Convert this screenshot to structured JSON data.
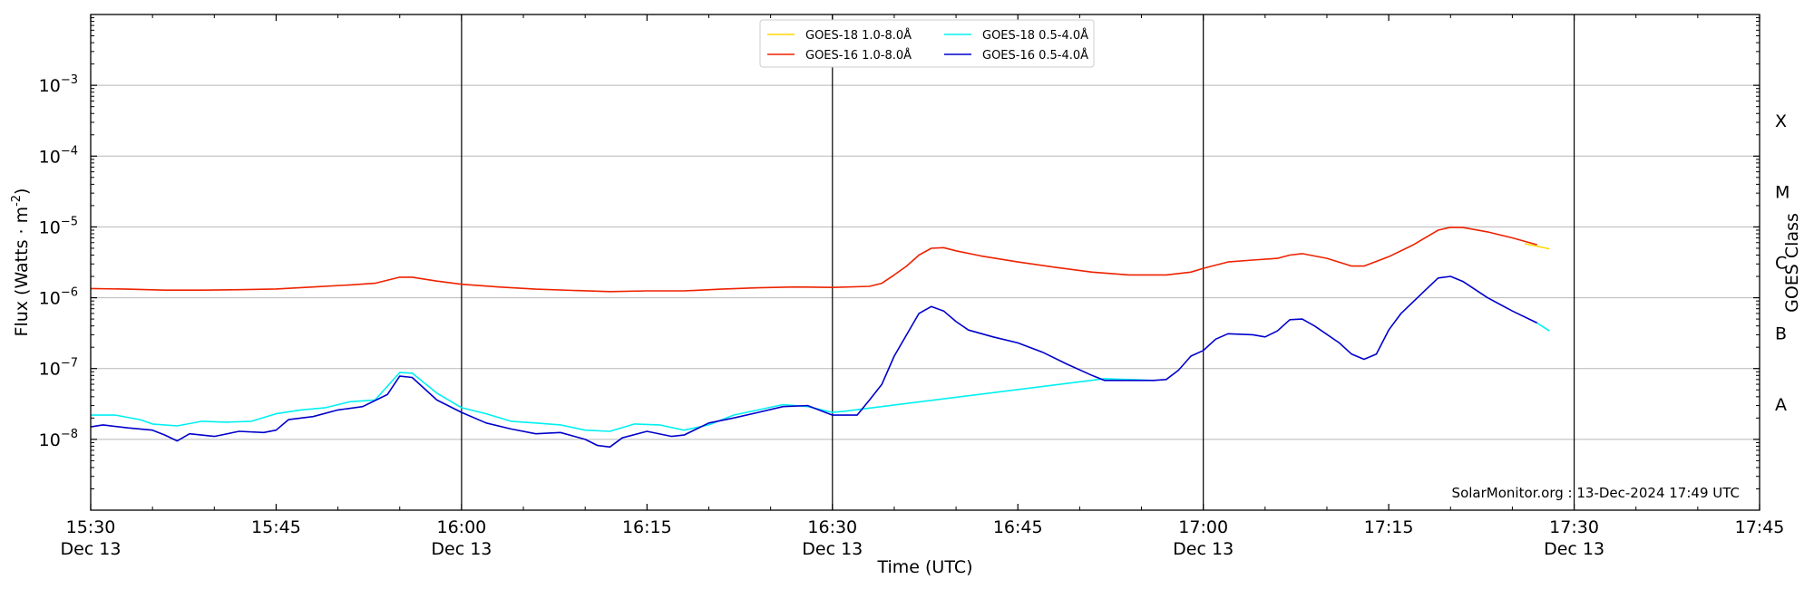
{
  "chart_data": {
    "type": "line",
    "xlabel": "Time (UTC)",
    "ylabel": "Flux (Watts · m",
    "ylabel_sup": "-2",
    "right_label": "GOES Class",
    "yscale": "log",
    "xlim": [
      "15:30",
      "17:45"
    ],
    "ylim_exponent": [
      -9,
      -2
    ],
    "x_ticks": [
      {
        "t": "15:30",
        "label": "15:30",
        "sub": "Dec 13"
      },
      {
        "t": "15:45",
        "label": "15:45",
        "sub": ""
      },
      {
        "t": "16:00",
        "label": "16:00",
        "sub": "Dec 13"
      },
      {
        "t": "16:15",
        "label": "16:15",
        "sub": ""
      },
      {
        "t": "16:30",
        "label": "16:30",
        "sub": "Dec 13"
      },
      {
        "t": "16:45",
        "label": "16:45",
        "sub": ""
      },
      {
        "t": "17:00",
        "label": "17:00",
        "sub": "Dec 13"
      },
      {
        "t": "17:15",
        "label": "17:15",
        "sub": ""
      },
      {
        "t": "17:30",
        "label": "17:30",
        "sub": "Dec 13"
      },
      {
        "t": "17:45",
        "label": "17:45",
        "sub": ""
      }
    ],
    "y_ticks": [
      {
        "exp": -8,
        "label": "10",
        "sup": "−8"
      },
      {
        "exp": -7,
        "label": "10",
        "sup": "−7"
      },
      {
        "exp": -6,
        "label": "10",
        "sup": "−6"
      },
      {
        "exp": -5,
        "label": "10",
        "sup": "−5"
      },
      {
        "exp": -4,
        "label": "10",
        "sup": "−4"
      },
      {
        "exp": -3,
        "label": "10",
        "sup": "−3"
      }
    ],
    "goes_classes": [
      {
        "label": "A",
        "exp": -7.5
      },
      {
        "label": "B",
        "exp": -6.5
      },
      {
        "label": "C",
        "exp": -5.5
      },
      {
        "label": "M",
        "exp": -4.5
      },
      {
        "label": "X",
        "exp": -3.5
      }
    ],
    "day_lines": [
      "16:00",
      "16:30",
      "17:00",
      "17:30"
    ],
    "grid": "horizontal",
    "legend_position": "top-center",
    "credit": "SolarMonitor.org : 13-Dec-2024 17:49 UTC",
    "series": [
      {
        "name": "GOES-18 1.0-8.0Å",
        "color": "#FFD700",
        "points": [
          [
            "17:26",
            5.8e-06
          ],
          [
            "17:28",
            4.9e-06
          ]
        ]
      },
      {
        "name": "GOES-16 1.0-8.0Å",
        "color": "#EE2200",
        "points": [
          [
            "15:30",
            1.35e-06
          ],
          [
            "15:33",
            1.32e-06
          ],
          [
            "15:36",
            1.28e-06
          ],
          [
            "15:39",
            1.28e-06
          ],
          [
            "15:42",
            1.3e-06
          ],
          [
            "15:45",
            1.33e-06
          ],
          [
            "15:48",
            1.42e-06
          ],
          [
            "15:51",
            1.52e-06
          ],
          [
            "15:53",
            1.6e-06
          ],
          [
            "15:55",
            1.95e-06
          ],
          [
            "15:56",
            1.95e-06
          ],
          [
            "15:58",
            1.72e-06
          ],
          [
            "16:00",
            1.55e-06
          ],
          [
            "16:03",
            1.42e-06
          ],
          [
            "16:06",
            1.32e-06
          ],
          [
            "16:09",
            1.27e-06
          ],
          [
            "16:12",
            1.22e-06
          ],
          [
            "16:15",
            1.25e-06
          ],
          [
            "16:18",
            1.25e-06
          ],
          [
            "16:21",
            1.32e-06
          ],
          [
            "16:24",
            1.38e-06
          ],
          [
            "16:27",
            1.42e-06
          ],
          [
            "16:30",
            1.4e-06
          ],
          [
            "16:33",
            1.45e-06
          ],
          [
            "16:34",
            1.6e-06
          ],
          [
            "16:35",
            2.1e-06
          ],
          [
            "16:36",
            2.8e-06
          ],
          [
            "16:37",
            4e-06
          ],
          [
            "16:38",
            5e-06
          ],
          [
            "16:39",
            5.1e-06
          ],
          [
            "16:40",
            4.6e-06
          ],
          [
            "16:42",
            3.9e-06
          ],
          [
            "16:45",
            3.2e-06
          ],
          [
            "16:48",
            2.7e-06
          ],
          [
            "16:51",
            2.3e-06
          ],
          [
            "16:54",
            2.1e-06
          ],
          [
            "16:57",
            2.1e-06
          ],
          [
            "16:59",
            2.3e-06
          ],
          [
            "17:00",
            2.6e-06
          ],
          [
            "17:02",
            3.2e-06
          ],
          [
            "17:04",
            3.4e-06
          ],
          [
            "17:06",
            3.6e-06
          ],
          [
            "17:07",
            4e-06
          ],
          [
            "17:08",
            4.2e-06
          ],
          [
            "17:10",
            3.6e-06
          ],
          [
            "17:12",
            2.8e-06
          ],
          [
            "17:13",
            2.8e-06
          ],
          [
            "17:15",
            3.8e-06
          ],
          [
            "17:17",
            5.6e-06
          ],
          [
            "17:19",
            9e-06
          ],
          [
            "17:20",
            9.9e-06
          ],
          [
            "17:21",
            9.8e-06
          ],
          [
            "17:23",
            8.5e-06
          ],
          [
            "17:25",
            7e-06
          ],
          [
            "17:27",
            5.6e-06
          ]
        ]
      },
      {
        "name": "GOES-18 0.5-4.0Å",
        "color": "#00F0F0",
        "points": [
          [
            "15:30",
            2.2e-08
          ],
          [
            "15:32",
            2.2e-08
          ],
          [
            "15:34",
            1.9e-08
          ],
          [
            "15:35",
            1.65e-08
          ],
          [
            "15:37",
            1.55e-08
          ],
          [
            "15:39",
            1.8e-08
          ],
          [
            "15:41",
            1.75e-08
          ],
          [
            "15:43",
            1.8e-08
          ],
          [
            "15:45",
            2.3e-08
          ],
          [
            "15:47",
            2.6e-08
          ],
          [
            "15:49",
            2.8e-08
          ],
          [
            "15:51",
            3.4e-08
          ],
          [
            "15:53",
            3.6e-08
          ],
          [
            "15:55",
            8.8e-08
          ],
          [
            "15:56",
            8.6e-08
          ],
          [
            "15:58",
            4.5e-08
          ],
          [
            "16:00",
            2.8e-08
          ],
          [
            "16:02",
            2.3e-08
          ],
          [
            "16:04",
            1.8e-08
          ],
          [
            "16:06",
            1.7e-08
          ],
          [
            "16:08",
            1.6e-08
          ],
          [
            "16:10",
            1.35e-08
          ],
          [
            "16:12",
            1.3e-08
          ],
          [
            "16:14",
            1.65e-08
          ],
          [
            "16:16",
            1.6e-08
          ],
          [
            "16:18",
            1.35e-08
          ],
          [
            "16:20",
            1.6e-08
          ],
          [
            "16:22",
            2.2e-08
          ],
          [
            "16:24",
            2.6e-08
          ],
          [
            "16:26",
            3.1e-08
          ],
          [
            "16:28",
            2.9e-08
          ],
          [
            "16:30",
            2.4e-08
          ],
          [
            "16:31",
            2.5e-08
          ],
          [
            "16:52",
            7.2e-08
          ],
          [
            "16:54",
            7e-08
          ],
          [
            "16:56",
            6.8e-08
          ]
        ]
      },
      {
        "name": "GOES-16 0.5-4.0Å",
        "color": "#0000CC",
        "points": [
          [
            "15:30",
            1.5e-08
          ],
          [
            "15:31",
            1.6e-08
          ],
          [
            "15:33",
            1.45e-08
          ],
          [
            "15:35",
            1.35e-08
          ],
          [
            "15:36",
            1.15e-08
          ],
          [
            "15:37",
            9.5e-09
          ],
          [
            "15:38",
            1.2e-08
          ],
          [
            "15:40",
            1.1e-08
          ],
          [
            "15:42",
            1.3e-08
          ],
          [
            "15:44",
            1.25e-08
          ],
          [
            "15:45",
            1.35e-08
          ],
          [
            "15:46",
            1.9e-08
          ],
          [
            "15:48",
            2.1e-08
          ],
          [
            "15:50",
            2.6e-08
          ],
          [
            "15:52",
            2.9e-08
          ],
          [
            "15:54",
            4.3e-08
          ],
          [
            "15:55",
            7.8e-08
          ],
          [
            "15:56",
            7.5e-08
          ],
          [
            "15:58",
            3.6e-08
          ],
          [
            "16:00",
            2.4e-08
          ],
          [
            "16:02",
            1.7e-08
          ],
          [
            "16:04",
            1.4e-08
          ],
          [
            "16:06",
            1.2e-08
          ],
          [
            "16:08",
            1.25e-08
          ],
          [
            "16:10",
            1e-08
          ],
          [
            "16:11",
            8.2e-09
          ],
          [
            "16:12",
            7.8e-09
          ],
          [
            "16:13",
            1.05e-08
          ],
          [
            "16:15",
            1.3e-08
          ],
          [
            "16:17",
            1.1e-08
          ],
          [
            "16:18",
            1.15e-08
          ],
          [
            "16:20",
            1.7e-08
          ],
          [
            "16:22",
            2e-08
          ],
          [
            "16:24",
            2.4e-08
          ],
          [
            "16:26",
            2.9e-08
          ],
          [
            "16:28",
            3e-08
          ],
          [
            "16:30",
            2.2e-08
          ],
          [
            "16:32",
            2.2e-08
          ],
          [
            "16:33",
            3.6e-08
          ],
          [
            "16:34",
            6e-08
          ],
          [
            "16:35",
            1.5e-07
          ],
          [
            "16:36",
            3e-07
          ],
          [
            "16:37",
            6e-07
          ],
          [
            "16:38",
            7.5e-07
          ],
          [
            "16:39",
            6.5e-07
          ],
          [
            "16:40",
            4.6e-07
          ],
          [
            "16:41",
            3.5e-07
          ],
          [
            "16:43",
            2.8e-07
          ],
          [
            "16:45",
            2.3e-07
          ],
          [
            "16:47",
            1.7e-07
          ],
          [
            "16:49",
            1.15e-07
          ],
          [
            "16:51",
            8e-08
          ],
          [
            "16:52",
            6.8e-08
          ],
          [
            "16:54",
            6.8e-08
          ],
          [
            "16:56",
            6.8e-08
          ],
          [
            "16:57",
            7e-08
          ],
          [
            "16:58",
            9.5e-08
          ],
          [
            "16:59",
            1.5e-07
          ],
          [
            "17:00",
            1.8e-07
          ],
          [
            "17:01",
            2.6e-07
          ],
          [
            "17:02",
            3.1e-07
          ],
          [
            "17:04",
            3e-07
          ],
          [
            "17:05",
            2.8e-07
          ],
          [
            "17:06",
            3.4e-07
          ],
          [
            "17:07",
            4.9e-07
          ],
          [
            "17:08",
            5e-07
          ],
          [
            "17:09",
            4e-07
          ],
          [
            "17:11",
            2.3e-07
          ],
          [
            "17:12",
            1.6e-07
          ],
          [
            "17:13",
            1.35e-07
          ],
          [
            "17:14",
            1.6e-07
          ],
          [
            "17:15",
            3.5e-07
          ],
          [
            "17:16",
            6e-07
          ],
          [
            "17:18",
            1.3e-06
          ],
          [
            "17:19",
            1.9e-06
          ],
          [
            "17:20",
            2e-06
          ],
          [
            "17:21",
            1.7e-06
          ],
          [
            "17:23",
            1e-06
          ],
          [
            "17:25",
            6.5e-07
          ],
          [
            "17:27",
            4.4e-07
          ]
        ]
      },
      {
        "name": "",
        "color": "#00F0F0",
        "points": [
          [
            "17:27",
            4.4e-07
          ],
          [
            "17:28",
            3.4e-07
          ]
        ]
      }
    ]
  }
}
